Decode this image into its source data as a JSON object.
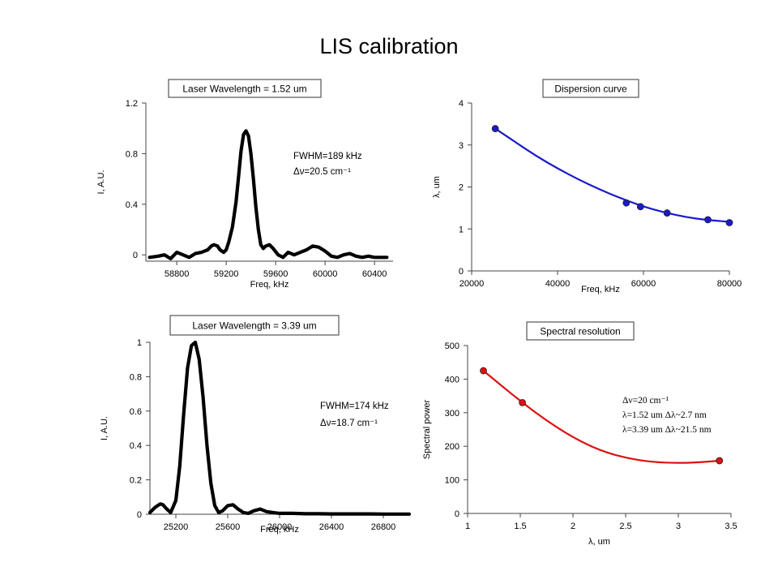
{
  "page": {
    "title": "LIS calibration"
  },
  "chart_data": [
    {
      "id": "tl",
      "type": "line",
      "title": "Laser Wavelength = 1.52 um",
      "xlabel": "Freq, kHz",
      "ylabel": "I, A.U.",
      "xlim": [
        58550,
        60550
      ],
      "ylim": [
        -0.05,
        1.2
      ],
      "xticks": [
        58800,
        59200,
        59600,
        60000,
        60400
      ],
      "yticks": [
        0,
        0.4,
        0.8,
        1.2
      ],
      "xtick_labels": [
        "58800",
        "59200",
        "59600",
        "60000",
        "60400"
      ],
      "ytick_labels": [
        "0",
        "0.4",
        "0.8",
        "1.2"
      ],
      "series": [
        {
          "color": "#000000",
          "x": [
            58580,
            58650,
            58700,
            58750,
            58800,
            58850,
            58900,
            58950,
            59000,
            59050,
            59080,
            59100,
            59130,
            59150,
            59180,
            59200,
            59220,
            59250,
            59280,
            59300,
            59320,
            59340,
            59360,
            59380,
            59400,
            59420,
            59440,
            59460,
            59480,
            59500,
            59520,
            59550,
            59580,
            59620,
            59660,
            59700,
            59750,
            59800,
            59850,
            59900,
            59950,
            60000,
            60050,
            60100,
            60150,
            60200,
            60250,
            60300,
            60350,
            60400,
            60450,
            60500
          ],
          "y": [
            -0.02,
            -0.01,
            0.0,
            -0.03,
            0.02,
            0.0,
            -0.02,
            0.01,
            0.02,
            0.04,
            0.07,
            0.08,
            0.07,
            0.04,
            0.02,
            0.04,
            0.1,
            0.22,
            0.42,
            0.62,
            0.82,
            0.95,
            0.98,
            0.94,
            0.8,
            0.6,
            0.38,
            0.2,
            0.08,
            0.05,
            0.07,
            0.08,
            0.05,
            0.0,
            -0.02,
            0.02,
            0.0,
            0.02,
            0.04,
            0.07,
            0.06,
            0.03,
            -0.01,
            -0.02,
            0.0,
            0.01,
            -0.01,
            -0.02,
            -0.01,
            -0.02,
            -0.02,
            -0.02
          ]
        }
      ],
      "annotations": [
        {
          "lines": [
            "FWHM=189 kHz",
            "Δν=20.5 cm⁻¹"
          ]
        }
      ]
    },
    {
      "id": "tr",
      "type": "scatter",
      "title": "Dispersion curve",
      "xlabel": "Freq, kHz",
      "ylabel": "λ, um",
      "xlim": [
        20000,
        80000
      ],
      "ylim": [
        0,
        4
      ],
      "xticks": [
        20000,
        40000,
        60000,
        80000
      ],
      "yticks": [
        0,
        1,
        2,
        3,
        4
      ],
      "xtick_labels": [
        "20000",
        "40000",
        "60000",
        "80000"
      ],
      "ytick_labels": [
        "0",
        "1",
        "2",
        "3",
        "4"
      ],
      "points": {
        "color": "#1a1acc",
        "x": [
          25500,
          56000,
          59300,
          65500,
          75000,
          80000
        ],
        "y": [
          3.39,
          1.62,
          1.53,
          1.38,
          1.22,
          1.15
        ]
      },
      "fit": {
        "color": "#1a1acc",
        "x": [
          25500,
          30000,
          35000,
          40000,
          45000,
          50000,
          55000,
          60000,
          65000,
          70000,
          75000,
          80000
        ],
        "y": [
          3.39,
          3.08,
          2.74,
          2.44,
          2.17,
          1.93,
          1.72,
          1.53,
          1.39,
          1.28,
          1.21,
          1.17
        ]
      }
    },
    {
      "id": "bl",
      "type": "line",
      "title": "Laser Wavelength = 3.39 um",
      "xlabel": "Freq, kHz",
      "ylabel": "I, A.U.",
      "xlim": [
        25000,
        27000
      ],
      "ylim": [
        0,
        1
      ],
      "xticks": [
        25200,
        25600,
        26000,
        26400,
        26800
      ],
      "yticks": [
        0,
        0.2,
        0.4,
        0.6,
        0.8,
        1
      ],
      "xtick_labels": [
        "25200",
        "25600",
        "26000",
        "26400",
        "26800"
      ],
      "ytick_labels": [
        "0",
        "0.2",
        "0.4",
        "0.6",
        "0.8",
        "1"
      ],
      "series": [
        {
          "color": "#000000",
          "x": [
            25000,
            25040,
            25080,
            25100,
            25130,
            25160,
            25200,
            25230,
            25260,
            25290,
            25320,
            25350,
            25380,
            25410,
            25440,
            25470,
            25500,
            25530,
            25560,
            25600,
            25640,
            25680,
            25720,
            25760,
            25800,
            25850,
            25900,
            25950,
            26000,
            26100,
            26200,
            26300,
            26400,
            26500,
            26600,
            26700,
            26800,
            26900,
            27000
          ],
          "y": [
            0.01,
            0.04,
            0.06,
            0.055,
            0.03,
            0.01,
            0.08,
            0.28,
            0.58,
            0.85,
            0.98,
            1.0,
            0.9,
            0.68,
            0.4,
            0.18,
            0.05,
            0.01,
            0.02,
            0.05,
            0.055,
            0.03,
            0.01,
            0.005,
            0.02,
            0.03,
            0.015,
            0.01,
            0.005,
            0.005,
            0.003,
            0.003,
            0.002,
            0.002,
            0.002,
            0.002,
            0.001,
            0.001,
            0.001
          ]
        }
      ],
      "annotations": [
        {
          "lines": [
            "FWHM=174 kHz",
            "Δν=18.7 cm⁻¹"
          ]
        }
      ]
    },
    {
      "id": "br",
      "type": "scatter",
      "title": "Spectral resolution",
      "xlabel": "λ, um",
      "ylabel": "Spectral power",
      "xlim": [
        1,
        3.5
      ],
      "ylim": [
        0,
        500
      ],
      "xticks": [
        1,
        1.5,
        2,
        2.5,
        3,
        3.5
      ],
      "yticks": [
        0,
        100,
        200,
        300,
        400,
        500
      ],
      "xtick_labels": [
        "1",
        "1.5",
        "2",
        "2.5",
        "3",
        "3.5"
      ],
      "ytick_labels": [
        "0",
        "100",
        "200",
        "300",
        "400",
        "500"
      ],
      "points": {
        "color": "#dd1111",
        "x": [
          1.15,
          1.52,
          3.39
        ],
        "y": [
          425,
          330,
          157
        ]
      },
      "fit": {
        "color": "#dd1111",
        "x": [
          1.15,
          1.3,
          1.52,
          1.75,
          2.0,
          2.25,
          2.5,
          2.75,
          3.0,
          3.2,
          3.39
        ],
        "y": [
          425,
          386,
          330,
          276,
          226,
          188,
          165,
          153,
          150,
          152,
          157
        ]
      },
      "annotations": [
        {
          "lines": [
            "Δν=20 cm⁻¹",
            "λ=1.52 um Δλ~2.7 nm",
            "λ=3.39 um Δλ~21.5 nm"
          ]
        }
      ]
    }
  ]
}
